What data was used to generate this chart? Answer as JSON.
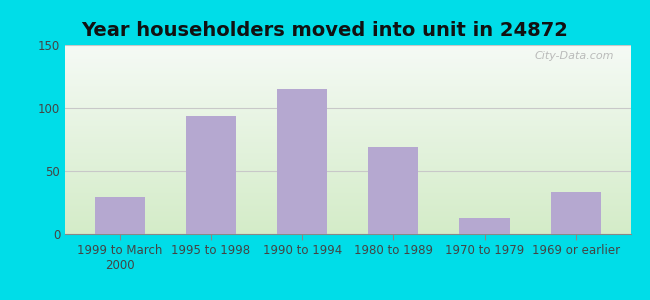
{
  "title": "Year householders moved into unit in 24872",
  "categories": [
    "1999 to March\n2000",
    "1995 to 1998",
    "1990 to 1994",
    "1980 to 1989",
    "1970 to 1979",
    "1969 or earlier"
  ],
  "values": [
    29,
    94,
    115,
    69,
    13,
    33
  ],
  "bar_color": "#b5a8d0",
  "background_outer": "#00dde8",
  "background_inner_top": "#f5faf5",
  "background_inner_bottom": "#d4ecc8",
  "ylim": [
    0,
    150
  ],
  "yticks": [
    0,
    50,
    100,
    150
  ],
  "grid_color": "#c8c8c8",
  "title_fontsize": 14,
  "tick_fontsize": 8.5,
  "watermark": "City-Data.com"
}
